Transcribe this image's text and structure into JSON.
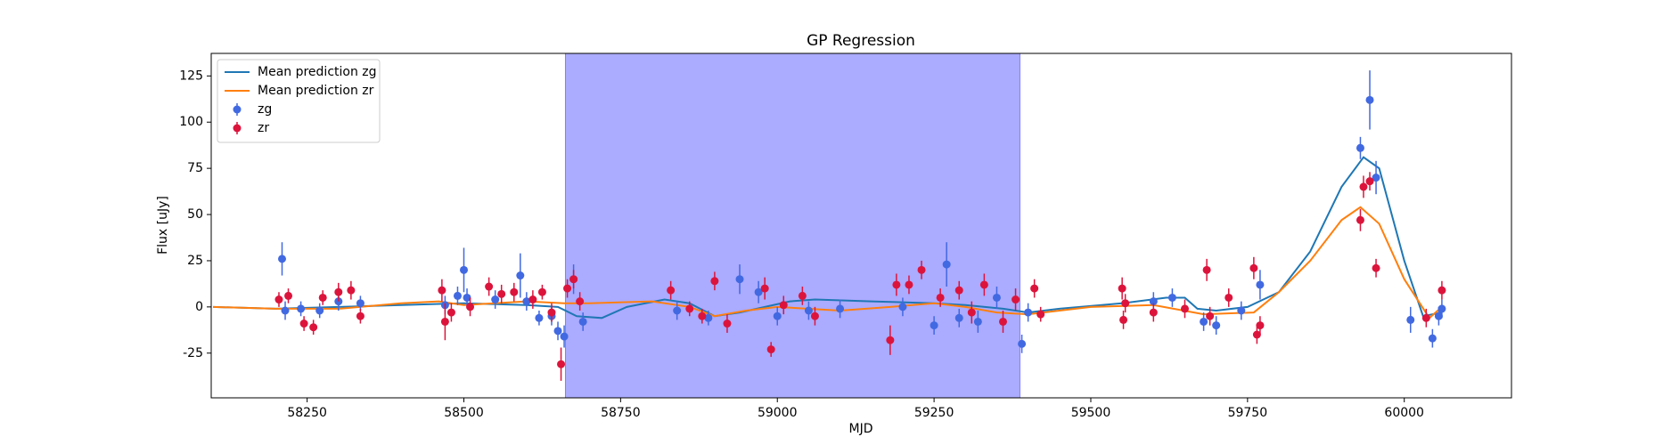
{
  "chart_data": {
    "type": "scatter",
    "title": "GP Regression",
    "x_label": "MJD",
    "y_label": "Flux [uJy]",
    "xlim": [
      58097,
      60171
    ],
    "ylim": [
      -49.2,
      137.2
    ],
    "xticks": [
      58250,
      58500,
      58750,
      59000,
      59250,
      59500,
      59750,
      60000
    ],
    "yticks": [
      -25,
      0,
      25,
      50,
      75,
      100,
      125
    ],
    "span": [
      58662,
      59387
    ],
    "span_color": "#0000ff",
    "legend": "upper left",
    "series": [
      {
        "name": "Mean prediction zg",
        "type": "line",
        "color": "#1f77b4",
        "x": [
          58100,
          58200,
          58300,
          58400,
          58500,
          58600,
          58650,
          58680,
          58720,
          58760,
          58820,
          58860,
          58900,
          58940,
          58980,
          59020,
          59060,
          59150,
          59250,
          59300,
          59360,
          59400,
          59450,
          59550,
          59620,
          59650,
          59670,
          59700,
          59750,
          59800,
          59850,
          59900,
          59935,
          59960,
          60000,
          60030,
          60060
        ],
        "values": [
          0,
          -1,
          0,
          1,
          2,
          1,
          0,
          -5,
          -6,
          0,
          4,
          2,
          -5,
          -3,
          0,
          3,
          4,
          3,
          2,
          1,
          -1,
          -3,
          -1,
          2,
          5,
          5,
          -1,
          -2,
          0,
          8,
          30,
          65,
          81,
          75,
          25,
          -5,
          -3
        ]
      },
      {
        "name": "Mean prediction zr",
        "type": "line",
        "color": "#ff7f0e",
        "x": [
          58100,
          58200,
          58300,
          58400,
          58460,
          58500,
          58600,
          58660,
          58700,
          58800,
          58860,
          58900,
          58950,
          59000,
          59100,
          59180,
          59250,
          59300,
          59350,
          59400,
          59500,
          59600,
          59680,
          59760,
          59800,
          59850,
          59900,
          59930,
          59960,
          60000,
          60040,
          60060
        ],
        "values": [
          0,
          -1,
          -1,
          2,
          3,
          1,
          3,
          2,
          2,
          3,
          0,
          -5,
          -2,
          0,
          -2,
          0,
          2,
          0,
          -3,
          -4,
          0,
          1,
          -4,
          -3,
          8,
          25,
          47,
          54,
          45,
          15,
          -6,
          0
        ]
      },
      {
        "name": "zg",
        "type": "errorbar",
        "color": "#4169e1",
        "x": [
          58210,
          58215,
          58240,
          58270,
          58300,
          58335,
          58470,
          58490,
          58500,
          58505,
          58550,
          58590,
          58600,
          58620,
          58640,
          58650,
          58660,
          58675,
          58690,
          58840,
          58890,
          58940,
          58970,
          59000,
          59050,
          59100,
          59200,
          59250,
          59270,
          59290,
          59320,
          59350,
          59390,
          59400,
          59600,
          59630,
          59680,
          59700,
          59740,
          59770,
          59930,
          59945,
          59955,
          60010,
          60045,
          60055,
          60060
        ],
        "values": [
          26,
          -2,
          -1,
          -2,
          3,
          2,
          1,
          6,
          20,
          5,
          4,
          17,
          3,
          -6,
          -5,
          -13,
          -16,
          15,
          -8,
          -2,
          -6,
          15,
          8,
          -5,
          -2,
          -1,
          0,
          -10,
          23,
          -6,
          -8,
          5,
          -20,
          -3,
          3,
          5,
          -8,
          -10,
          -2,
          12,
          86,
          112,
          70,
          -7,
          -17,
          -5,
          -1
        ],
        "errors": [
          9,
          5,
          4,
          4,
          5,
          4,
          5,
          5,
          12,
          5,
          5,
          12,
          5,
          4,
          5,
          5,
          6,
          8,
          5,
          5,
          4,
          8,
          6,
          5,
          5,
          5,
          5,
          5,
          12,
          5,
          6,
          6,
          5,
          5,
          5,
          5,
          5,
          5,
          5,
          8,
          6,
          16,
          9,
          7,
          5,
          5,
          5
        ]
      },
      {
        "name": "zr",
        "type": "errorbar",
        "color": "#dc143c",
        "x": [
          58205,
          58220,
          58245,
          58260,
          58275,
          58300,
          58320,
          58335,
          58465,
          58470,
          58480,
          58510,
          58540,
          58560,
          58580,
          58610,
          58625,
          58640,
          58655,
          58665,
          58675,
          58685,
          58830,
          58860,
          58880,
          58900,
          58920,
          58980,
          58990,
          59010,
          59040,
          59060,
          59180,
          59190,
          59210,
          59230,
          59260,
          59290,
          59310,
          59330,
          59360,
          59380,
          59410,
          59420,
          59550,
          59552,
          59555,
          59600,
          59650,
          59685,
          59690,
          59720,
          59760,
          59765,
          59770,
          59930,
          59935,
          59945,
          59955,
          60035,
          60060
        ],
        "values": [
          4,
          6,
          -9,
          -11,
          5,
          8,
          9,
          -5,
          9,
          -8,
          -3,
          0,
          11,
          7,
          8,
          4,
          8,
          -3,
          -31,
          10,
          15,
          3,
          9,
          -1,
          -5,
          14,
          -9,
          10,
          -23,
          1,
          6,
          -5,
          -18,
          12,
          12,
          20,
          5,
          9,
          -3,
          12,
          -8,
          4,
          10,
          -4,
          10,
          -7,
          2,
          -3,
          -1,
          20,
          -5,
          5,
          21,
          -15,
          -10,
          47,
          65,
          68,
          21,
          -6,
          9
        ],
        "errors": [
          4,
          4,
          4,
          4,
          4,
          5,
          5,
          4,
          6,
          10,
          5,
          5,
          5,
          5,
          5,
          5,
          4,
          5,
          9,
          5,
          5,
          5,
          5,
          4,
          4,
          5,
          5,
          6,
          4,
          5,
          5,
          5,
          8,
          6,
          5,
          5,
          5,
          5,
          6,
          6,
          6,
          6,
          5,
          4,
          6,
          5,
          5,
          5,
          5,
          6,
          5,
          5,
          6,
          5,
          5,
          6,
          6,
          5,
          5,
          5,
          5
        ]
      }
    ]
  }
}
